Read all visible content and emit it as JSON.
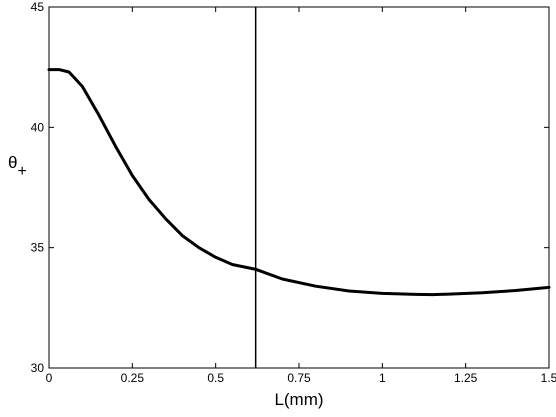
{
  "chart_data": {
    "type": "line",
    "title": "",
    "xlabel": "L(mm)",
    "ylabel_main": "θ",
    "ylabel_sub": "+",
    "xlim": [
      0,
      1.5
    ],
    "ylim": [
      30,
      45
    ],
    "xticks": [
      0,
      0.25,
      0.5,
      0.75,
      1,
      1.25,
      1.5
    ],
    "xtick_labels": [
      "0",
      "0.25",
      "0.5",
      "0.75",
      "1",
      "1.25",
      "1.5"
    ],
    "yticks": [
      30,
      35,
      40,
      45
    ],
    "ytick_labels": [
      "30",
      "35",
      "40",
      "45"
    ],
    "grid": false,
    "legend": "none",
    "vertical_line_x": 0.62,
    "series": [
      {
        "color": "#000000",
        "x": [
          0,
          0.03,
          0.06,
          0.1,
          0.15,
          0.2,
          0.25,
          0.3,
          0.35,
          0.4,
          0.45,
          0.5,
          0.55,
          0.62,
          0.7,
          0.8,
          0.9,
          1.0,
          1.1,
          1.15,
          1.2,
          1.3,
          1.4,
          1.5
        ],
        "y": [
          42.4,
          42.4,
          42.3,
          41.7,
          40.5,
          39.2,
          38.0,
          37.0,
          36.2,
          35.5,
          35.0,
          34.6,
          34.3,
          34.1,
          33.7,
          33.4,
          33.2,
          33.1,
          33.06,
          33.05,
          33.07,
          33.13,
          33.22,
          33.35
        ]
      }
    ]
  }
}
